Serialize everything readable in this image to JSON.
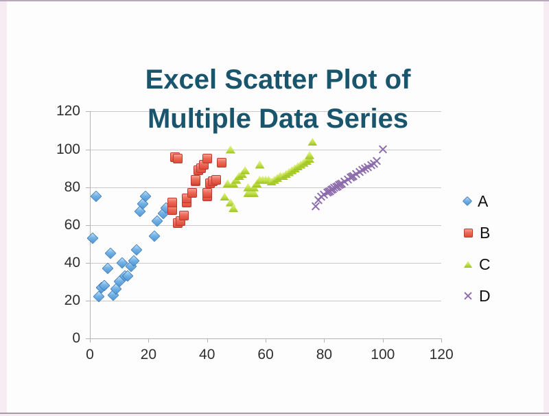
{
  "chart_data": {
    "type": "scatter",
    "title_line1": "Excel Scatter Plot of",
    "title_line2": "Multiple Data Series",
    "xlabel": "",
    "ylabel": "",
    "xlim": [
      0,
      120
    ],
    "ylim": [
      0,
      120
    ],
    "x_ticks": [
      0,
      20,
      40,
      60,
      80,
      100,
      120
    ],
    "y_ticks": [
      0,
      20,
      40,
      60,
      80,
      100,
      120
    ],
    "grid": "horizontal",
    "legend_position": "right",
    "title_color": "#19566e",
    "series": [
      {
        "name": "A",
        "marker": "diamond",
        "color": "#5b9bd5",
        "points": [
          [
            1,
            53
          ],
          [
            2,
            75
          ],
          [
            3,
            22
          ],
          [
            4,
            27
          ],
          [
            5,
            28
          ],
          [
            6,
            37
          ],
          [
            7,
            45
          ],
          [
            8,
            23
          ],
          [
            9,
            26
          ],
          [
            10,
            30
          ],
          [
            11,
            40
          ],
          [
            12,
            33
          ],
          [
            13,
            33
          ],
          [
            14,
            38
          ],
          [
            15,
            41
          ],
          [
            16,
            47
          ],
          [
            17,
            67
          ],
          [
            18,
            71
          ],
          [
            19,
            75
          ],
          [
            22,
            54
          ],
          [
            23,
            62
          ],
          [
            25,
            66
          ],
          [
            26,
            69
          ]
        ]
      },
      {
        "name": "B",
        "marker": "square",
        "color": "#e04c3c",
        "points": [
          [
            28,
            68
          ],
          [
            28,
            72
          ],
          [
            29,
            96
          ],
          [
            30,
            61
          ],
          [
            30,
            95
          ],
          [
            31,
            62
          ],
          [
            32,
            65
          ],
          [
            33,
            72
          ],
          [
            33,
            74
          ],
          [
            35,
            77
          ],
          [
            36,
            83
          ],
          [
            36,
            84
          ],
          [
            37,
            89
          ],
          [
            38,
            90
          ],
          [
            39,
            92
          ],
          [
            40,
            75
          ],
          [
            40,
            77
          ],
          [
            40,
            95
          ],
          [
            41,
            82
          ],
          [
            42,
            83
          ],
          [
            43,
            84
          ],
          [
            45,
            93
          ]
        ]
      },
      {
        "name": "C",
        "marker": "triangle",
        "color": "#aed136",
        "points": [
          [
            46,
            75
          ],
          [
            47,
            82
          ],
          [
            48,
            72
          ],
          [
            48,
            100
          ],
          [
            49,
            69
          ],
          [
            49,
            82
          ],
          [
            50,
            84
          ],
          [
            51,
            86
          ],
          [
            52,
            87
          ],
          [
            53,
            89
          ],
          [
            54,
            77
          ],
          [
            54,
            80
          ],
          [
            55,
            77
          ],
          [
            56,
            77
          ],
          [
            56,
            80
          ],
          [
            57,
            82
          ],
          [
            58,
            84
          ],
          [
            58,
            92
          ],
          [
            59,
            84
          ],
          [
            60,
            84
          ],
          [
            61,
            84
          ],
          [
            62,
            83
          ],
          [
            63,
            84
          ],
          [
            64,
            85
          ],
          [
            65,
            86
          ],
          [
            66,
            86
          ],
          [
            67,
            87
          ],
          [
            68,
            88
          ],
          [
            69,
            89
          ],
          [
            70,
            90
          ],
          [
            71,
            91
          ],
          [
            72,
            92
          ],
          [
            73,
            93
          ],
          [
            74,
            94
          ],
          [
            75,
            95
          ],
          [
            75,
            97
          ],
          [
            76,
            104
          ]
        ]
      },
      {
        "name": "D",
        "marker": "x",
        "color": "#8d6cab",
        "points": [
          [
            77,
            70
          ],
          [
            78,
            73
          ],
          [
            79,
            75
          ],
          [
            80,
            76
          ],
          [
            81,
            77
          ],
          [
            81.5,
            77.5
          ],
          [
            82,
            78
          ],
          [
            82.5,
            78.5
          ],
          [
            83,
            79
          ],
          [
            83.5,
            79.5
          ],
          [
            84,
            80
          ],
          [
            84.5,
            80.5
          ],
          [
            85,
            81
          ],
          [
            85.5,
            81.5
          ],
          [
            86,
            82
          ],
          [
            87,
            83
          ],
          [
            88,
            84
          ],
          [
            89,
            85
          ],
          [
            89.5,
            85.5
          ],
          [
            90,
            86
          ],
          [
            91,
            87
          ],
          [
            92,
            88
          ],
          [
            93,
            89
          ],
          [
            94,
            90
          ],
          [
            95,
            90.5
          ],
          [
            96,
            91.5
          ],
          [
            97,
            92.5
          ],
          [
            98,
            94
          ],
          [
            100,
            100
          ]
        ]
      }
    ]
  }
}
